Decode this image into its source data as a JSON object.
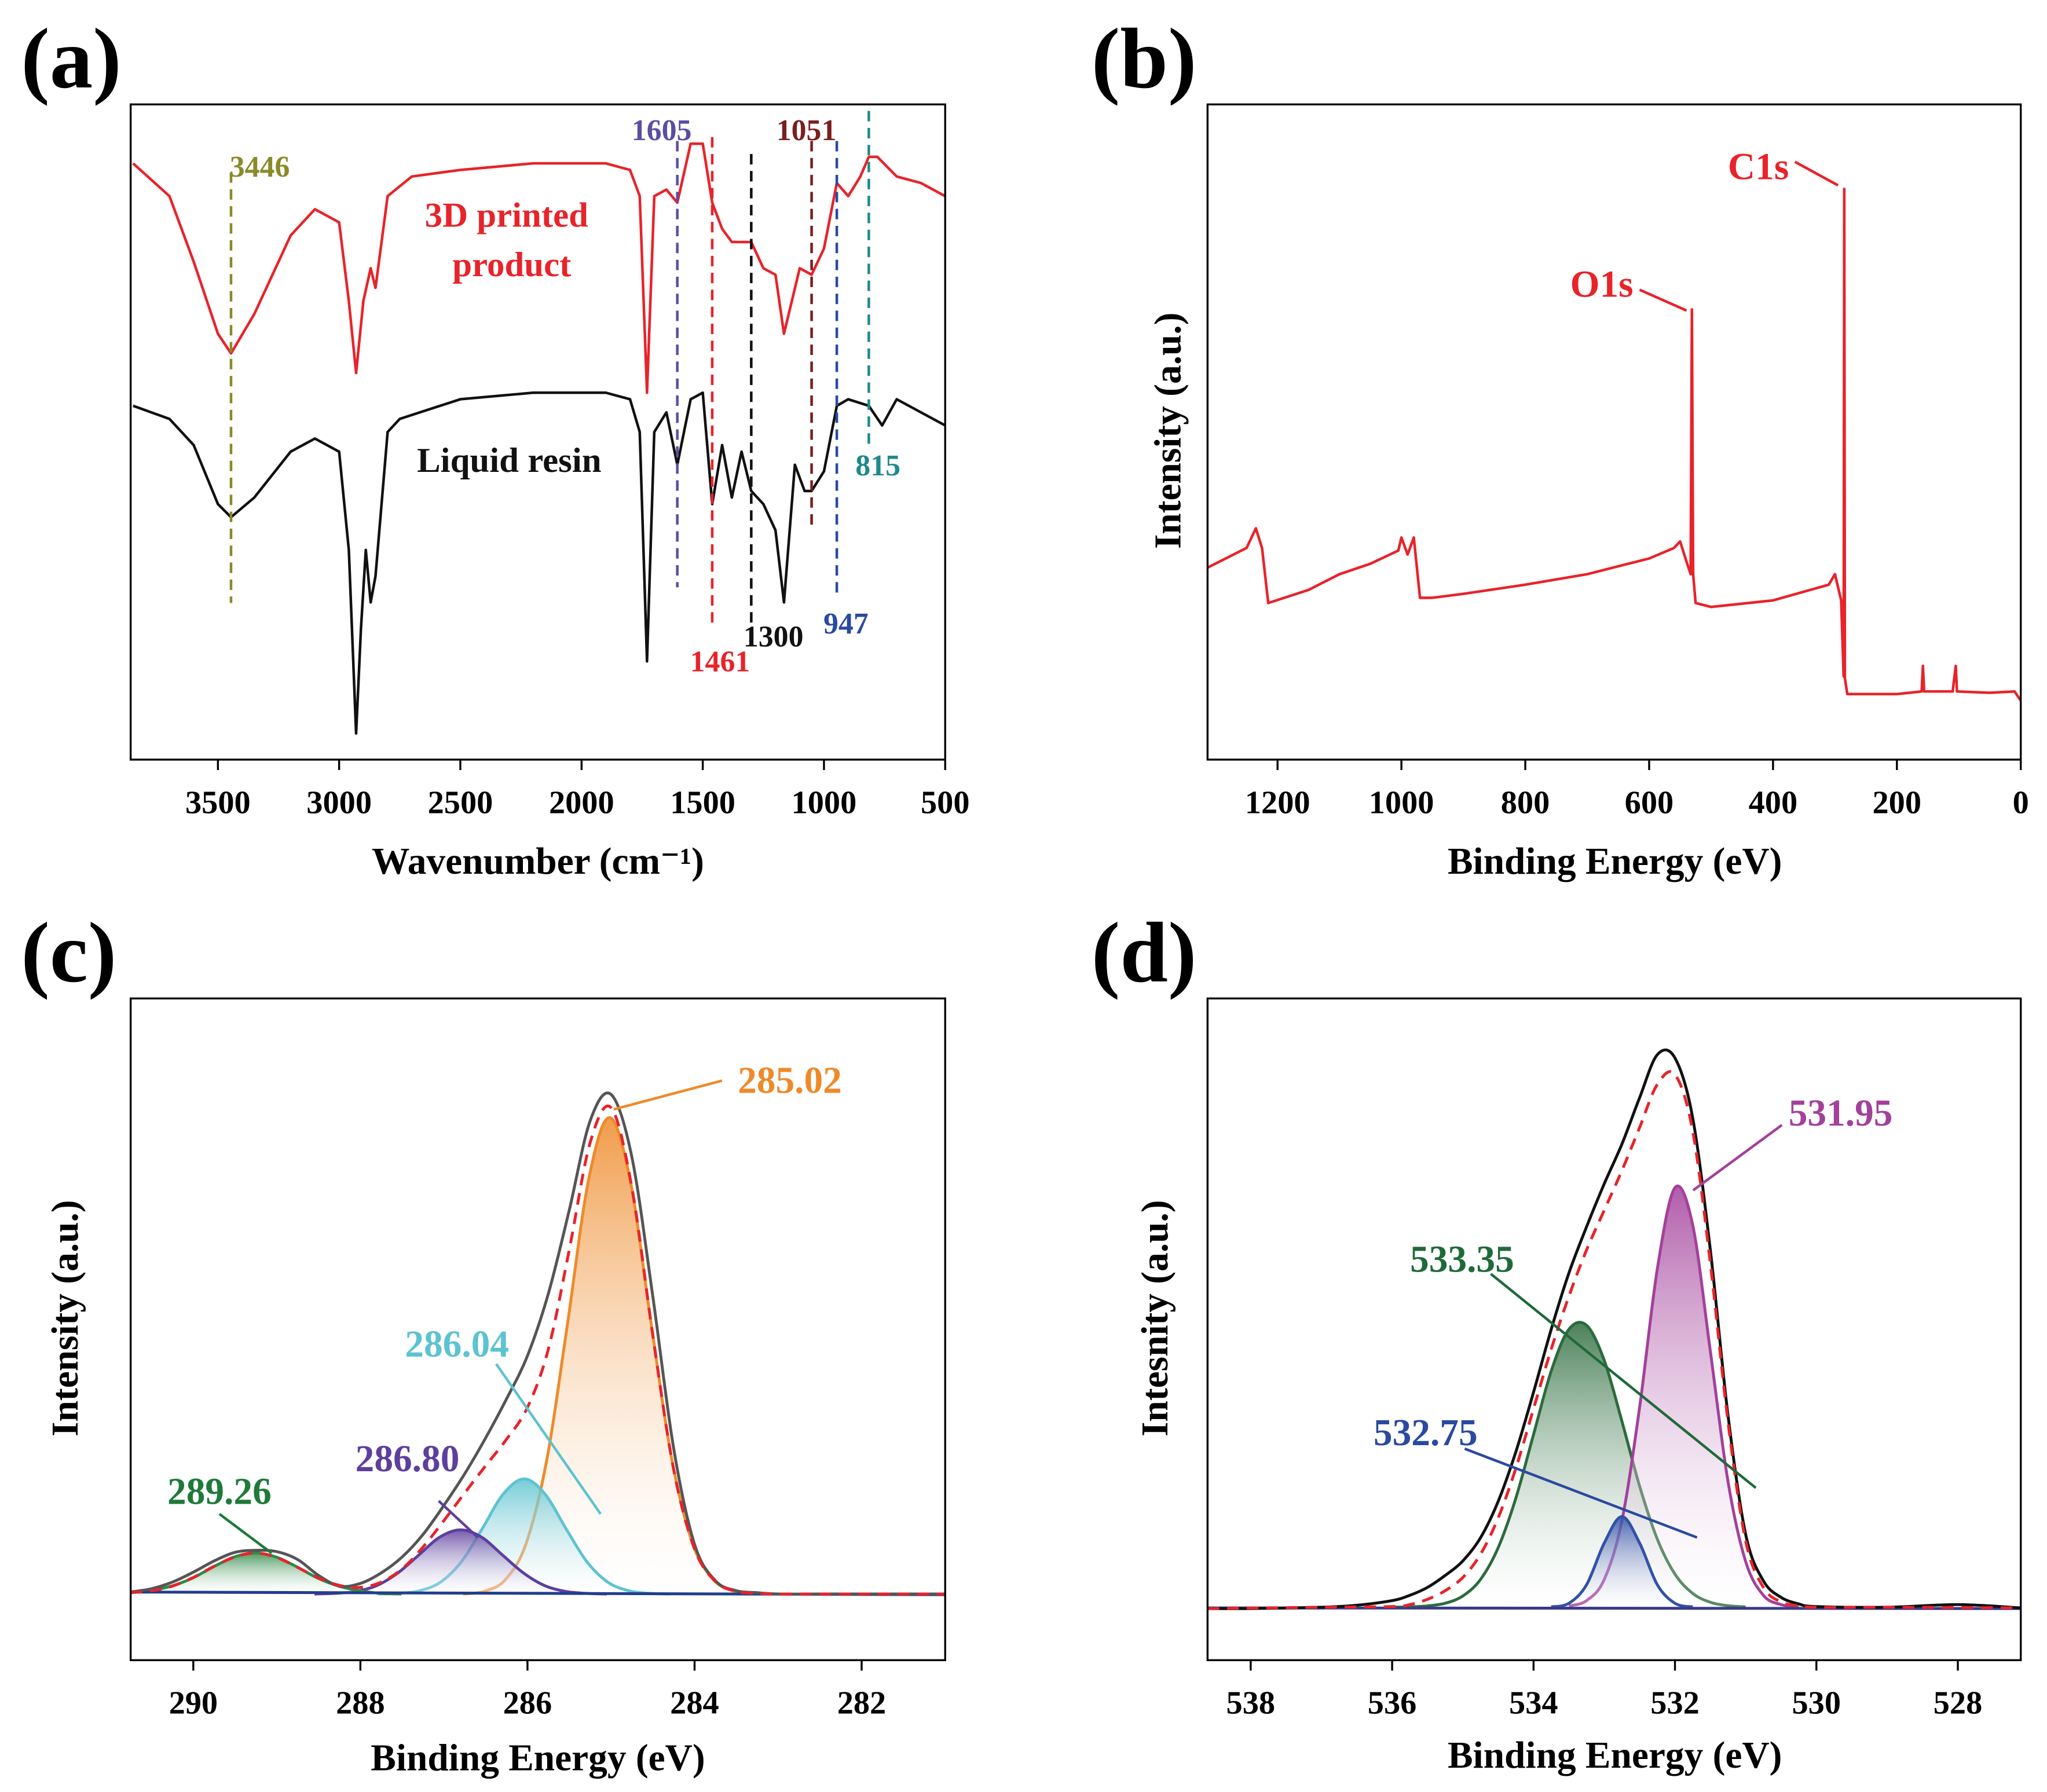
{
  "chart_data": [
    {
      "type": "line",
      "panel": "(a)",
      "xlabel": "Wavenumber (cm⁻¹)",
      "xlim": [
        3860,
        500
      ],
      "xticks": [
        3500,
        3000,
        2500,
        2000,
        1500,
        1000,
        500
      ],
      "ylim": [
        0,
        100
      ],
      "series": [
        {
          "color": "#e8232a",
          "x": [
            3850,
            3700,
            3600,
            3500,
            3446,
            3350,
            3200,
            3100,
            3000,
            2960,
            2930,
            2900,
            2870,
            2850,
            2800,
            2700,
            2500,
            2200,
            1900,
            1800,
            1760,
            1730,
            1700,
            1650,
            1605,
            1550,
            1500,
            1461,
            1420,
            1380,
            1300,
            1250,
            1200,
            1165,
            1100,
            1051,
            1000,
            947,
            900,
            850,
            815,
            780,
            700,
            600,
            500
          ],
          "values": [
            91,
            86,
            76,
            65,
            62,
            68,
            80,
            84,
            82,
            70,
            59,
            70,
            75,
            72,
            86,
            89,
            90,
            91,
            91,
            90,
            86,
            56,
            86,
            87,
            85,
            94,
            94,
            85,
            81,
            79,
            79,
            75,
            74,
            65,
            75,
            74,
            78,
            88,
            86,
            89,
            92,
            92,
            89,
            88,
            86
          ]
        },
        {
          "color": "#111111",
          "x": [
            3850,
            3700,
            3600,
            3500,
            3446,
            3350,
            3200,
            3100,
            3000,
            2960,
            2930,
            2910,
            2890,
            2870,
            2850,
            2800,
            2750,
            2500,
            2200,
            1900,
            1800,
            1760,
            1730,
            1700,
            1650,
            1605,
            1550,
            1500,
            1461,
            1420,
            1380,
            1340,
            1300,
            1250,
            1200,
            1165,
            1120,
            1080,
            1051,
            1000,
            947,
            900,
            815,
            760,
            700,
            600,
            500
          ],
          "values": [
            54,
            52,
            48,
            39,
            37,
            40,
            47,
            49,
            47,
            32,
            4,
            20,
            32,
            24,
            28,
            50,
            52,
            55,
            56,
            56,
            55,
            50,
            15,
            50,
            53,
            45,
            55,
            56,
            39,
            48,
            40,
            47,
            41,
            39,
            35,
            24,
            45,
            41,
            41,
            44,
            54,
            55,
            54,
            51,
            55,
            53,
            51
          ]
        }
      ],
      "markers": [
        {
          "value": 3446,
          "color": "#8a8a2a"
        },
        {
          "value": 1605,
          "color": "#5b4ea0"
        },
        {
          "value": 1461,
          "color": "#e8232a"
        },
        {
          "value": 1300,
          "color": "#111111"
        },
        {
          "value": 1051,
          "color": "#7a1e1e"
        },
        {
          "value": 947,
          "color": "#2a4aa0"
        },
        {
          "value": 815,
          "color": "#1f8a8a"
        }
      ],
      "labels": [
        {
          "text": "3D printed",
          "color": "#e8232a"
        },
        {
          "text": "product",
          "color": "#e8232a"
        },
        {
          "text": "Liquid resin",
          "color": "#111111"
        }
      ]
    },
    {
      "type": "line",
      "panel": "(b)",
      "xlabel": "Binding Energy (eV)",
      "ylabel": "Intensity (a.u.)",
      "xlim": [
        1313,
        0
      ],
      "xticks": [
        1200,
        1000,
        800,
        600,
        400,
        200,
        0
      ],
      "ylim": [
        0,
        100
      ],
      "series": [
        {
          "color": "#e8232a",
          "x": [
            1313,
            1250,
            1235,
            1225,
            1215,
            1150,
            1100,
            1050,
            1005,
            1000,
            990,
            980,
            970,
            950,
            900,
            800,
            700,
            600,
            560,
            550,
            540,
            533,
            531,
            529,
            525,
            500,
            400,
            310,
            300,
            290,
            286,
            285,
            284,
            280,
            200,
            160,
            158,
            156,
            110,
            105,
            103,
            50,
            10,
            0
          ],
          "values": [
            29.3,
            32.3,
            35.3,
            32.3,
            23.9,
            25.9,
            28.3,
            29.9,
            31.9,
            33.9,
            31.3,
            33.9,
            24.7,
            24.7,
            25.3,
            26.7,
            28.3,
            30.7,
            32.3,
            33.3,
            30.3,
            28.3,
            68.7,
            28.3,
            23.9,
            23.3,
            24.3,
            26.7,
            28.3,
            24.3,
            12.7,
            87.1,
            12.4,
            10.0,
            10.0,
            10.4,
            14.3,
            10.4,
            10.4,
            14.3,
            10.4,
            10.2,
            10.4,
            9.0
          ]
        }
      ],
      "labels": [
        {
          "text": "O1s",
          "color": "#e8232a"
        },
        {
          "text": "C1s",
          "color": "#e8232a"
        }
      ]
    },
    {
      "type": "line",
      "panel": "(c)",
      "xlabel": "Binding Energy (eV)",
      "ylabel": "Intensity (a.u.)",
      "smooth": true,
      "xlim": [
        290.75,
        281
      ],
      "xticks": [
        290,
        288,
        286,
        284,
        282
      ],
      "ylim": [
        0,
        100
      ],
      "series": [
        {
          "color": "#ee8a2a",
          "fill": true,
          "x": [
            286.77,
            286.52,
            286.27,
            286.02,
            285.77,
            285.52,
            285.27,
            285.02,
            284.77,
            284.52,
            284.27,
            284.02,
            283.77,
            283.52,
            283.27
          ],
          "values": [
            10,
            10.4,
            12.1,
            17.5,
            30.2,
            50.9,
            72.5,
            82,
            72.5,
            50.9,
            30.2,
            17.5,
            12.1,
            10.4,
            10
          ]
        },
        {
          "color": "#5cc3d0",
          "fill": true,
          "x": [
            287.79,
            287.54,
            287.29,
            287.04,
            286.79,
            286.54,
            286.29,
            286.04,
            285.79,
            285.54,
            285.29,
            285.04,
            284.79,
            284.54,
            284.29
          ],
          "values": [
            10,
            10.1,
            10.5,
            11.8,
            14.9,
            19.9,
            25.1,
            27.4,
            25.1,
            19.9,
            14.9,
            11.8,
            10.5,
            10.1,
            10
          ]
        },
        {
          "color": "#5d3f9e",
          "fill": true,
          "x": [
            288.55,
            288.3,
            288.05,
            287.8,
            287.55,
            287.3,
            287.05,
            286.8,
            286.55,
            286.3,
            286.05,
            285.8,
            285.55,
            285.3,
            285.05
          ],
          "values": [
            10,
            10.1,
            10.4,
            11.3,
            13.2,
            15.9,
            18.6,
            19.7,
            18.6,
            15.9,
            13.2,
            11.3,
            10.4,
            10.1,
            10
          ]
        },
        {
          "color": "#2f8a46",
          "fill": true,
          "x": [
            290.51,
            290.26,
            290.01,
            289.76,
            289.51,
            289.26,
            289.01,
            288.76,
            288.51,
            288.26,
            288.01,
            287.76,
            287.51
          ],
          "values": [
            10.5,
            11.2,
            12.4,
            14.1,
            15.6,
            16.2,
            15.6,
            14.1,
            12.4,
            11.2,
            10.5,
            10.1,
            10.0
          ]
        },
        {
          "color": "#223d8f",
          "x": [
            290.75,
            281
          ],
          "values": [
            10.3,
            9.9
          ]
        },
        {
          "color": "#555555",
          "x": [
            290.75,
            290.5,
            290.25,
            290,
            289.75,
            289.5,
            289.25,
            289,
            288.75,
            288.5,
            288.25,
            288,
            287.75,
            287.5,
            287.25,
            287,
            286.75,
            286.5,
            286.25,
            286,
            285.75,
            285.5,
            285.25,
            285,
            284.75,
            284.5,
            284.25,
            284,
            283.75,
            283.5,
            283.25,
            283,
            282.5,
            282,
            281.5,
            281
          ],
          "values": [
            10.3,
            10.8,
            11.8,
            13.3,
            15.0,
            16.3,
            16.6,
            16.4,
            15.2,
            12.8,
            11.2,
            11.6,
            13.2,
            15.6,
            19.0,
            23.4,
            28.2,
            33.6,
            39.5,
            46.0,
            55.4,
            68.0,
            81.5,
            85.5,
            76.0,
            55.0,
            32.0,
            17.5,
            12.0,
            10.5,
            10.2,
            10,
            10,
            10,
            10,
            10
          ]
        },
        {
          "color": "#e8232a",
          "style": "dashed",
          "x": [
            290.75,
            290.5,
            290.25,
            290,
            289.75,
            289.5,
            289.25,
            289,
            288.75,
            288.5,
            288.25,
            288,
            287.75,
            287.5,
            287.25,
            287,
            286.75,
            286.5,
            286.25,
            286,
            285.75,
            285.5,
            285.25,
            285,
            284.75,
            284.5,
            284.25,
            284,
            283.75,
            283.5,
            283.25,
            283,
            282.5,
            282,
            281.5,
            281
          ],
          "values": [
            10.2,
            10.5,
            11.2,
            12.5,
            14.2,
            15.6,
            16.2,
            15.5,
            14.0,
            12.4,
            11.3,
            11.0,
            11.8,
            13.8,
            17.1,
            21.1,
            25.3,
            29.4,
            33.4,
            38.2,
            47.0,
            62.0,
            78.2,
            83.5,
            71.4,
            49.1,
            28.8,
            16.8,
            11.9,
            10.4,
            10.1,
            10,
            10,
            10,
            10,
            10
          ]
        }
      ],
      "annotations": [
        {
          "value": 285.02,
          "color": "#ee8a2a"
        },
        {
          "value": 286.04,
          "color": "#5cc3d0"
        },
        {
          "value": 286.8,
          "label": "286.80",
          "color": "#5d3f9e"
        },
        {
          "value": 289.26,
          "color": "#1f7a3a"
        }
      ]
    },
    {
      "type": "line",
      "panel": "(d)",
      "xlabel": "Binding Energy (eV)",
      "ylabel": "Intesnity (a.u.)",
      "smooth": true,
      "xlim": [
        538.61,
        527.11
      ],
      "xticks": [
        538,
        536,
        534,
        532,
        530,
        528
      ],
      "ylim": [
        0,
        100
      ],
      "series": [
        {
          "color": "#2b6b3c",
          "fill": true,
          "x": [
            536,
            535.75,
            535.5,
            535.25,
            535,
            534.75,
            534.5,
            534.25,
            534,
            533.75,
            533.5,
            533.25,
            533,
            532.75,
            532.5,
            532.25,
            532,
            531.75,
            531.5,
            531.25,
            531
          ],
          "values": [
            8.0,
            8.05,
            8.2,
            8.6,
            9.7,
            12.2,
            17.0,
            24.5,
            34.1,
            43.7,
            50.0,
            50.6,
            45.3,
            36.1,
            26.3,
            18.3,
            13.0,
            10.1,
            8.75,
            8.23,
            8.06
          ]
        },
        {
          "color": "#a3409b",
          "fill": true,
          "x": [
            533.5,
            533.25,
            533,
            532.75,
            532.5,
            532.25,
            532,
            531.75,
            531.5,
            531.25,
            531,
            530.75,
            530.5,
            530.25
          ],
          "values": [
            8.2,
            9.0,
            12.2,
            21.1,
            38.2,
            59.1,
            71.4,
            65.8,
            46.7,
            27.0,
            14.9,
            9.8,
            8.4,
            8.05
          ]
        },
        {
          "color": "#3151a8",
          "fill": true,
          "x": [
            533.75,
            533.5,
            533.25,
            533,
            532.75,
            532.5,
            532.25,
            532,
            531.75
          ],
          "values": [
            8.05,
            8.6,
            11.4,
            17.7,
            21.7,
            17.7,
            11.4,
            8.6,
            8.05
          ]
        },
        {
          "color": "#3a3a8a",
          "x": [
            538.61,
            527.11
          ],
          "values": [
            7.9,
            7.8
          ]
        },
        {
          "color": "#111111",
          "x": [
            538.61,
            538,
            537,
            536.5,
            536,
            535.75,
            535.5,
            535.25,
            535,
            534.75,
            534.5,
            534.25,
            534,
            533.75,
            533.5,
            533.25,
            533,
            532.75,
            532.5,
            532.25,
            532,
            531.75,
            531.5,
            531.25,
            531,
            530.75,
            530.5,
            530.25,
            530,
            529,
            528,
            527.11
          ],
          "values": [
            7.8,
            7.8,
            8.0,
            8.3,
            9.0,
            9.8,
            11.0,
            12.8,
            15.0,
            18.5,
            24.0,
            31.5,
            40.5,
            50,
            58.5,
            65.5,
            72,
            78,
            85,
            91.5,
            91,
            82,
            62,
            37,
            19,
            12,
            9.5,
            8.5,
            8.1,
            8,
            8.4,
            7.9
          ]
        },
        {
          "color": "#e8232a",
          "style": "dashed",
          "x": [
            538.61,
            537,
            536,
            535.75,
            535.5,
            535.25,
            535,
            534.75,
            534.5,
            534.25,
            534,
            533.75,
            533.5,
            533.25,
            533,
            532.75,
            532.5,
            532.25,
            532,
            531.75,
            531.5,
            531.25,
            531,
            530.75,
            530.5,
            530.25,
            530,
            529,
            527.11
          ],
          "values": [
            7.8,
            8.0,
            8.1,
            8.4,
            9.2,
            10.5,
            12.5,
            16,
            21.5,
            29,
            38,
            47,
            55,
            62,
            68,
            74,
            80.5,
            87,
            88.5,
            80,
            60,
            36,
            18,
            11,
            8.8,
            8.2,
            8.0,
            8.0,
            7.9
          ]
        }
      ],
      "annotations": [
        {
          "value": 531.95,
          "color": "#a3409b"
        },
        {
          "value": 533.35,
          "color": "#1f6a3a"
        },
        {
          "value": 532.75,
          "color": "#2a4aa0"
        }
      ]
    }
  ]
}
